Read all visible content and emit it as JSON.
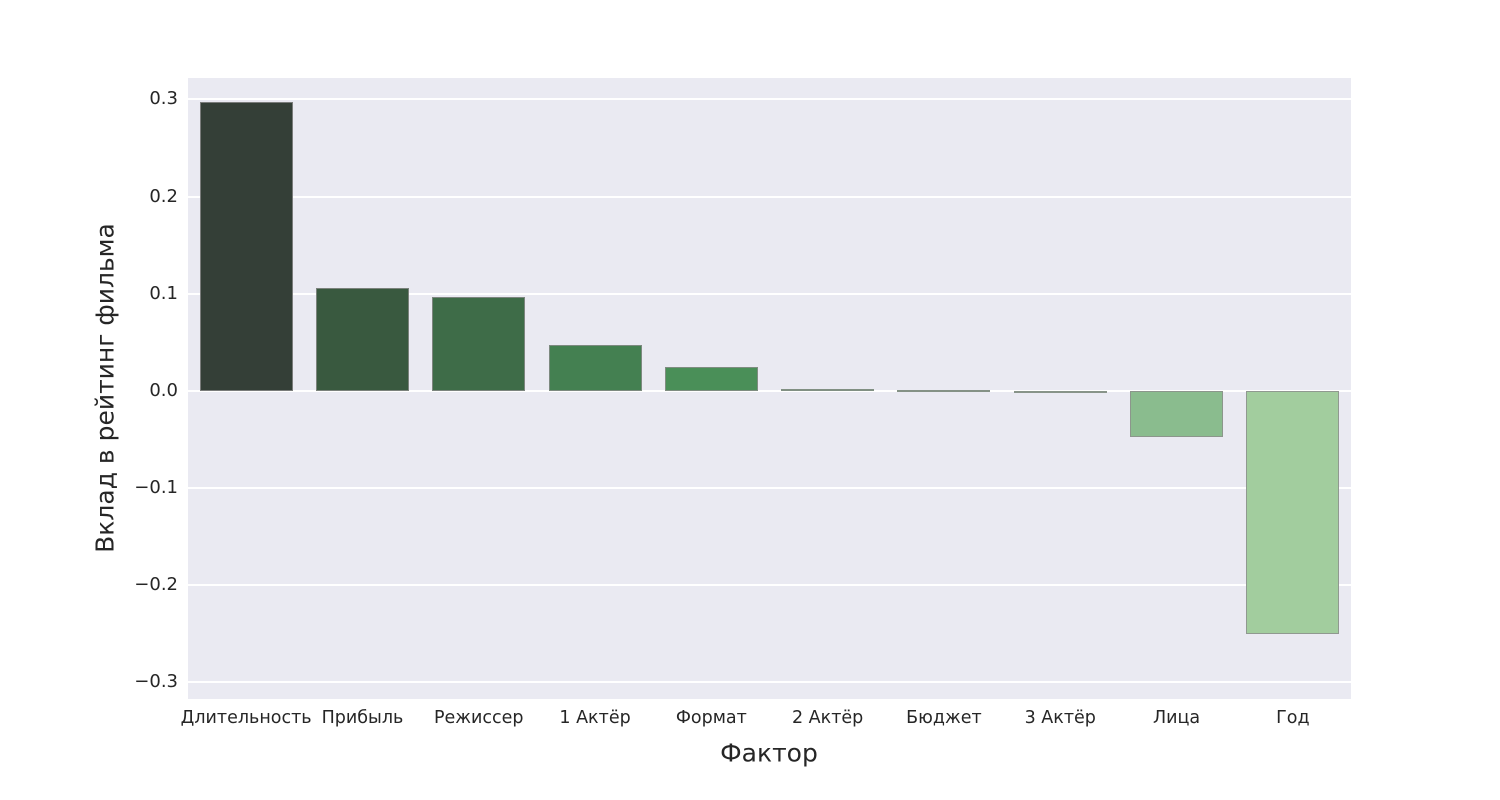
{
  "chart_data": {
    "type": "bar",
    "title": "",
    "xlabel": "Фактор",
    "ylabel": "Вклад в рейтинг фильма",
    "categories": [
      "Длительность",
      "Прибыль",
      "Режиссер",
      "1 Актёр",
      "Формат",
      "2 Актёр",
      "Бюджет",
      "3 Актёр",
      "Лица",
      "Год"
    ],
    "values": [
      0.297,
      0.106,
      0.097,
      0.047,
      0.025,
      0.002,
      0.001,
      -0.001,
      -0.047,
      -0.25
    ],
    "bar_colors": [
      "#343f37",
      "#39593f",
      "#3e6c48",
      "#448051",
      "#4a8f58",
      "#57a061",
      "#69aa6e",
      "#7bb37e",
      "#8abc8e",
      "#a2cd9e"
    ],
    "bar_edge_color": "rgba(140,140,140,0.8)",
    "yticks": [
      0.3,
      0.2,
      0.1,
      0.0,
      -0.1,
      -0.2,
      -0.3
    ],
    "ytick_labels": [
      "0.3",
      "0.2",
      "0.1",
      "0.0",
      "−0.1",
      "−0.2",
      "−0.3"
    ],
    "ylim": [
      -0.317,
      0.322
    ],
    "grid": true,
    "legend": false,
    "plot_bg_color": "#eaeaf2",
    "gridline_color": "#ffffff",
    "text_color": "#262626"
  }
}
